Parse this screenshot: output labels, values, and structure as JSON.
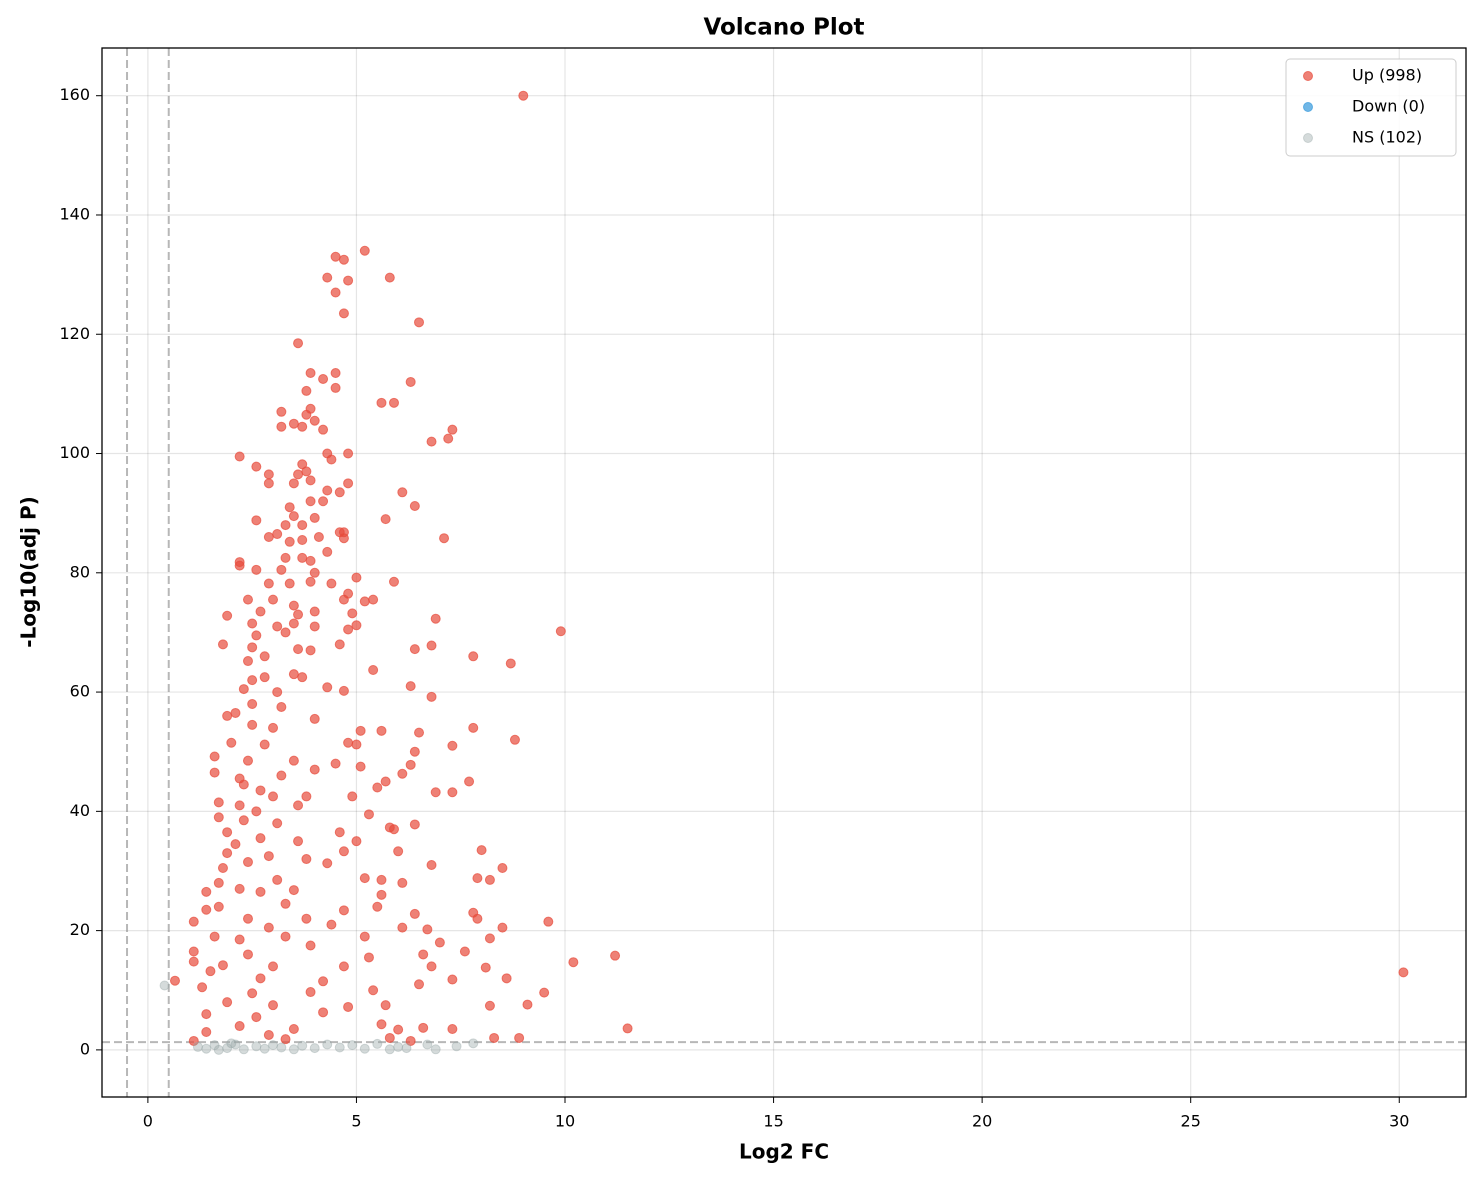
{
  "chart_data": {
    "type": "scatter",
    "title": "Volcano Plot",
    "x_label": "Log2 FC",
    "y_label": "-Log10(adj P)",
    "xlim": [
      -1.1,
      31.6
    ],
    "ylim": [
      -7.9,
      168
    ],
    "xticks": [
      0,
      5,
      10,
      15,
      20,
      25,
      30
    ],
    "yticks": [
      0,
      20,
      40,
      60,
      80,
      100,
      120,
      140,
      160
    ],
    "grid": true,
    "legend": "upper right",
    "threshold_x": [
      -0.5,
      0.5
    ],
    "threshold_y": 1.3,
    "series": [
      {
        "name": "Up (998)",
        "color": "#e74c3c",
        "x": [
          9.0,
          5.2,
          4.7,
          4.5,
          4.3,
          5.8,
          4.8,
          4.5,
          4.7,
          6.5,
          3.6,
          3.9,
          4.5,
          4.2,
          6.3,
          3.8,
          4.5,
          5.6,
          5.9,
          3.9,
          3.8,
          3.2,
          4.0,
          3.5,
          3.2,
          3.7,
          4.2,
          7.3,
          7.2,
          6.8,
          4.8,
          2.2,
          4.3,
          4.4,
          2.6,
          3.7,
          3.8,
          2.9,
          3.6,
          3.9,
          2.9,
          3.5,
          4.8,
          4.3,
          4.6,
          6.1,
          3.9,
          4.2,
          3.4,
          6.4,
          4.0,
          2.6,
          3.5,
          5.7,
          3.3,
          3.7,
          4.6,
          4.7,
          7.1,
          2.9,
          3.1,
          3.4,
          3.7,
          4.1,
          4.7,
          3.3,
          3.7,
          2.2,
          2.2,
          2.6,
          3.2,
          3.9,
          4.0,
          4.3,
          2.9,
          3.4,
          3.9,
          4.4,
          5.0,
          5.9,
          4.8,
          2.4,
          3.0,
          3.5,
          4.7,
          5.2,
          5.4,
          1.9,
          2.7,
          3.6,
          4.0,
          4.9,
          6.9,
          2.5,
          3.1,
          3.5,
          4.0,
          5.0,
          9.9,
          2.6,
          3.3,
          4.8,
          1.8,
          2.5,
          3.6,
          4.6,
          6.8,
          6.4,
          2.8,
          3.9,
          7.8,
          8.7,
          2.4,
          2.8,
          3.5,
          5.4,
          2.5,
          3.7,
          6.3,
          2.3,
          3.1,
          4.3,
          4.7,
          6.8,
          2.1,
          2.5,
          3.2,
          4.0,
          1.9,
          2.5,
          3.0,
          5.1,
          5.6,
          6.5,
          7.8,
          2.0,
          2.8,
          4.8,
          5.0,
          7.3,
          8.8,
          1.6,
          2.4,
          3.5,
          4.5,
          6.4,
          1.6,
          2.2,
          3.2,
          4.0,
          5.1,
          6.3,
          6.1,
          2.3,
          2.7,
          3.0,
          3.8,
          5.5,
          5.7,
          7.7,
          1.7,
          2.2,
          2.6,
          3.6,
          4.9,
          6.9,
          7.3,
          1.7,
          2.3,
          3.1,
          5.3,
          5.8,
          6.4,
          1.9,
          2.7,
          4.6,
          5.9,
          2.1,
          3.6,
          5.0,
          1.9,
          2.9,
          4.7,
          8.0,
          6.0,
          1.8,
          2.4,
          3.8,
          4.3,
          6.8,
          8.5,
          1.7,
          2.2,
          3.1,
          5.2,
          5.6,
          6.1,
          7.9,
          8.2,
          1.4,
          2.7,
          3.5,
          5.6,
          1.7,
          3.3,
          4.7,
          5.5,
          7.8,
          1.4,
          2.4,
          3.8,
          6.4,
          7.9,
          9.6,
          1.1,
          2.9,
          4.4,
          6.7,
          8.5,
          1.6,
          2.2,
          3.3,
          5.2,
          6.1,
          7.0,
          8.2,
          1.1,
          2.4,
          3.9,
          5.3,
          6.6,
          7.6,
          11.2,
          1.1,
          1.8,
          3.0,
          4.7,
          10.2,
          8.1,
          6.8,
          1.5,
          2.7,
          4.2,
          6.5,
          7.3,
          8.6,
          30.1,
          1.3,
          2.5,
          3.9,
          5.4,
          9.5,
          1.9,
          3.0,
          4.8,
          5.7,
          8.2,
          9.1,
          1.4,
          2.6,
          4.2,
          5.6,
          2.2,
          3.5,
          6.0,
          6.6,
          7.3,
          11.5,
          1.4,
          2.9,
          5.8,
          8.3,
          8.9,
          0.65,
          1.1,
          3.3,
          6.3
        ],
        "values": [
          160,
          134,
          132.5,
          133,
          129.5,
          129.5,
          129,
          127,
          123.5,
          122,
          118.5,
          113.5,
          113.5,
          112.5,
          112,
          110.5,
          111,
          108.5,
          108.5,
          107.5,
          106.5,
          107,
          105.5,
          105,
          104.5,
          104.5,
          104,
          104,
          102.5,
          102,
          100,
          99.5,
          100,
          99,
          97.8,
          98.2,
          97,
          96.5,
          96.5,
          95.5,
          95,
          95,
          95,
          93.8,
          93.5,
          93.5,
          92,
          92,
          91,
          91.2,
          89.2,
          88.8,
          89.5,
          89,
          88,
          88,
          86.8,
          86.8,
          85.8,
          86,
          86.5,
          85.2,
          85.5,
          86,
          85.8,
          82.5,
          82.5,
          81.8,
          81.2,
          80.5,
          80.5,
          82,
          80,
          83.5,
          78.2,
          78.2,
          78.5,
          78.2,
          79.2,
          78.5,
          76.5,
          75.5,
          75.5,
          74.5,
          75.5,
          75.2,
          75.5,
          72.8,
          73.5,
          73,
          73.5,
          73.2,
          72.3,
          71.5,
          71,
          71.5,
          71,
          71.2,
          70.2,
          69.5,
          70,
          70.5,
          68,
          67.5,
          67.2,
          68,
          67.8,
          67.2,
          66,
          67,
          66,
          64.8,
          65.2,
          62.5,
          63,
          63.7,
          62,
          62.5,
          61,
          60.5,
          60,
          60.8,
          60.2,
          59.2,
          56.5,
          58,
          57.5,
          55.5,
          56,
          54.5,
          54,
          53.5,
          53.5,
          53.2,
          54,
          51.5,
          51.2,
          51.5,
          51.2,
          51,
          52,
          49.2,
          48.5,
          48.5,
          48,
          50,
          46.5,
          45.5,
          46,
          47,
          47.5,
          47.8,
          46.3,
          44.5,
          43.5,
          42.5,
          42.5,
          44,
          45,
          45,
          41.5,
          41,
          40,
          41,
          42.5,
          43.2,
          43.2,
          39,
          38.5,
          38,
          39.5,
          37.3,
          37.8,
          36.5,
          35.5,
          36.5,
          37,
          34.5,
          35,
          35,
          33,
          32.5,
          33.3,
          33.5,
          33.3,
          30.5,
          31.5,
          32,
          31.3,
          31,
          30.5,
          28,
          27,
          28.5,
          28.8,
          28.5,
          28,
          28.8,
          28.5,
          26.5,
          26.5,
          26.8,
          26,
          24,
          24.5,
          23.4,
          24,
          23,
          23.5,
          22,
          22,
          22.8,
          22,
          21.5,
          21.5,
          20.5,
          21,
          20.2,
          20.5,
          19,
          18.5,
          19,
          19,
          20.5,
          18,
          18.7,
          16.5,
          16,
          17.5,
          15.5,
          16,
          16.5,
          15.8,
          14.8,
          14.2,
          14,
          14,
          14.7,
          13.8,
          14,
          13.2,
          12,
          11.5,
          11,
          11.8,
          12,
          13,
          10.5,
          9.5,
          9.7,
          10,
          9.6,
          8,
          7.5,
          7.2,
          7.5,
          7.4,
          7.6,
          6,
          5.5,
          6.3,
          4.3,
          4,
          3.5,
          3.4,
          3.7,
          3.5,
          3.6,
          3,
          2.5,
          2,
          2,
          2,
          11.6,
          1.5,
          1.8,
          1.5
        ]
      },
      {
        "name": "Down (0)",
        "color": "#3498db",
        "x": [],
        "values": []
      },
      {
        "name": "NS (102)",
        "color": "#95a5a6",
        "x": [
          0.4,
          1.2,
          1.4,
          1.6,
          1.9,
          2.1,
          2.3,
          2.6,
          2.8,
          3.0,
          3.2,
          3.5,
          3.7,
          4.0,
          4.3,
          4.6,
          4.9,
          5.2,
          5.5,
          5.8,
          6.0,
          6.2,
          6.7,
          6.9,
          7.4,
          7.8,
          2.0,
          1.7
        ],
        "values": [
          10.8,
          0.5,
          0.2,
          0.8,
          0.3,
          0.9,
          0.1,
          0.6,
          0.2,
          0.8,
          0.4,
          0.1,
          0.7,
          0.3,
          0.9,
          0.4,
          0.8,
          0.2,
          1.0,
          0.1,
          0.5,
          0.3,
          0.9,
          0.1,
          0.6,
          1.1,
          1.1,
          0.0
        ]
      }
    ]
  }
}
